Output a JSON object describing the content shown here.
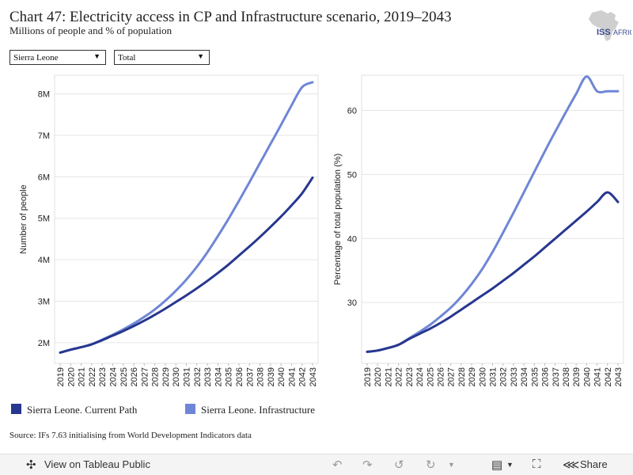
{
  "header": {
    "title": "Chart 47: Electricity access in CP and Infrastructure scenario, 2019–2043",
    "subtitle": "Millions of people and % of population",
    "logo_text": "ISS",
    "logo_text_2": "AFRICA"
  },
  "filters": {
    "country": "Sierra Leone",
    "category": "Total"
  },
  "colors": {
    "current_path": "#27378f",
    "infrastructure": "#6f86d6"
  },
  "legend": {
    "current_path": "Sierra Leone. Current Path",
    "infrastructure": "Sierra Leone. Infrastructure"
  },
  "source": "Source: IFs 7.63 initialising from World Development Indicators data",
  "footer": {
    "view_label": "View on Tableau Public",
    "share_label": "Share"
  },
  "chart_data": [
    {
      "type": "line",
      "title": "",
      "xlabel": "",
      "ylabel": "Number of people",
      "ylim": [
        1.5,
        8.45
      ],
      "yticks": [
        2,
        3,
        4,
        5,
        6,
        7,
        8
      ],
      "ytick_labels": [
        "2M",
        "3M",
        "4M",
        "5M",
        "6M",
        "7M",
        "8M"
      ],
      "grid": true,
      "x": [
        2019,
        2020,
        2021,
        2022,
        2023,
        2024,
        2025,
        2026,
        2027,
        2028,
        2029,
        2030,
        2031,
        2032,
        2033,
        2034,
        2035,
        2036,
        2037,
        2038,
        2039,
        2040,
        2041,
        2042,
        2043
      ],
      "series": [
        {
          "name": "Sierra Leone. Current Path",
          "values": [
            1.76,
            1.83,
            1.89,
            1.96,
            2.06,
            2.17,
            2.28,
            2.4,
            2.53,
            2.67,
            2.82,
            2.98,
            3.14,
            3.31,
            3.49,
            3.68,
            3.88,
            4.1,
            4.32,
            4.55,
            4.79,
            5.04,
            5.31,
            5.6,
            5.98
          ]
        },
        {
          "name": "Sierra Leone. Infrastructure",
          "values": [
            1.76,
            1.83,
            1.89,
            1.96,
            2.07,
            2.19,
            2.32,
            2.46,
            2.62,
            2.8,
            3.01,
            3.25,
            3.52,
            3.83,
            4.18,
            4.57,
            4.98,
            5.42,
            5.87,
            6.33,
            6.79,
            7.25,
            7.72,
            8.16,
            8.28
          ]
        }
      ]
    },
    {
      "type": "line",
      "title": "",
      "xlabel": "",
      "ylabel": "Percentage of total population (%)",
      "ylim": [
        20.5,
        65.5
      ],
      "yticks": [
        30,
        40,
        50,
        60
      ],
      "ytick_labels": [
        "30",
        "40",
        "50",
        "60"
      ],
      "grid": true,
      "x": [
        2019,
        2020,
        2021,
        2022,
        2023,
        2024,
        2025,
        2026,
        2027,
        2028,
        2029,
        2030,
        2031,
        2032,
        2033,
        2034,
        2035,
        2036,
        2037,
        2038,
        2039,
        2040,
        2041,
        2042,
        2043
      ],
      "series": [
        {
          "name": "Sierra Leone. Current Path",
          "values": [
            22.3,
            22.5,
            22.9,
            23.4,
            24.3,
            25.1,
            25.9,
            26.8,
            27.8,
            28.9,
            30.0,
            31.1,
            32.2,
            33.4,
            34.6,
            35.9,
            37.2,
            38.6,
            40.0,
            41.4,
            42.8,
            44.2,
            45.7,
            47.2,
            45.7
          ]
        },
        {
          "name": "Sierra Leone. Infrastructure",
          "values": [
            22.3,
            22.5,
            22.9,
            23.4,
            24.4,
            25.4,
            26.5,
            27.8,
            29.2,
            30.9,
            32.9,
            35.2,
            37.9,
            40.9,
            44.0,
            47.2,
            50.4,
            53.6,
            56.7,
            59.7,
            62.6,
            65.3,
            63.0,
            63.0,
            63.0
          ]
        }
      ]
    }
  ]
}
